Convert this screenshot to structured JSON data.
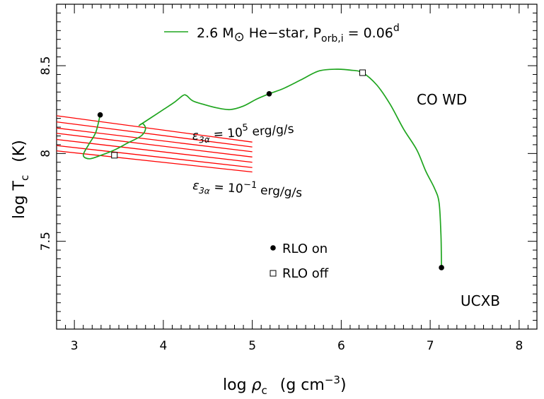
{
  "chart_data": {
    "type": "line",
    "xlabel_parts": {
      "main": "log ",
      "rho": "ρ",
      "sub": "c",
      "units": "(g cm",
      "sup": "−3",
      "close": ")"
    },
    "ylabel_parts": {
      "main": "log T",
      "sub": "c",
      "units": "(K)"
    },
    "xlim": [
      2.8,
      8.2
    ],
    "ylim": [
      7.0,
      8.85
    ],
    "x_ticks": [
      3,
      4,
      5,
      6,
      7,
      8
    ],
    "x_tick_labels": [
      "3",
      "4",
      "5",
      "6",
      "7",
      "8"
    ],
    "y_ticks": [
      7.5,
      8.0,
      8.5
    ],
    "y_tick_labels": [
      "7.5",
      "8",
      "8.5"
    ],
    "grid": false,
    "series": [
      {
        "color": "#1fa51f",
        "points": [
          [
            3.29,
            8.22
          ],
          [
            3.24,
            8.12
          ],
          [
            3.16,
            8.05
          ],
          [
            3.1,
            7.99
          ],
          [
            3.17,
            7.97
          ],
          [
            3.3,
            7.99
          ],
          [
            3.45,
            8.02
          ],
          [
            3.6,
            8.06
          ],
          [
            3.75,
            8.1
          ],
          [
            3.8,
            8.14
          ],
          [
            3.77,
            8.17
          ],
          [
            3.73,
            8.16
          ],
          [
            3.85,
            8.2
          ],
          [
            4.0,
            8.25
          ],
          [
            4.12,
            8.29
          ],
          [
            4.22,
            8.33
          ],
          [
            4.26,
            8.33
          ],
          [
            4.33,
            8.3
          ],
          [
            4.45,
            8.28
          ],
          [
            4.6,
            8.26
          ],
          [
            4.75,
            8.25
          ],
          [
            4.9,
            8.27
          ],
          [
            5.05,
            8.31
          ],
          [
            5.19,
            8.34
          ],
          [
            5.35,
            8.37
          ],
          [
            5.55,
            8.42
          ],
          [
            5.75,
            8.47
          ],
          [
            5.95,
            8.48
          ],
          [
            6.1,
            8.475
          ],
          [
            6.24,
            8.46
          ],
          [
            6.4,
            8.39
          ],
          [
            6.55,
            8.28
          ],
          [
            6.7,
            8.14
          ],
          [
            6.85,
            8.02
          ],
          [
            6.95,
            7.9
          ],
          [
            7.05,
            7.8
          ],
          [
            7.1,
            7.72
          ],
          [
            7.12,
            7.55
          ],
          [
            7.125,
            7.44
          ],
          [
            7.127,
            7.35
          ]
        ]
      }
    ],
    "legend": {
      "text_main": "2.6 M",
      "text_sun": "⊙",
      "text_mid": " He−star, P",
      "text_sub": "orb,i",
      "text_eq": " = 0.06",
      "text_sup": "d",
      "position": "top-center"
    },
    "burning_lines": {
      "color": "#ff0000",
      "x_range": [
        2.8,
        5.0
      ],
      "y_left": [
        8.215,
        8.18,
        8.145,
        8.115,
        8.08,
        8.045,
        8.015
      ],
      "y_right": [
        8.065,
        8.037,
        8.01,
        7.98,
        7.95,
        7.92,
        7.895
      ]
    },
    "markers": {
      "rlo_on": [
        [
          3.29,
          8.22
        ],
        [
          5.19,
          8.34
        ],
        [
          7.127,
          7.35
        ]
      ],
      "rlo_off": [
        [
          3.45,
          7.99
        ],
        [
          6.24,
          8.46
        ]
      ]
    },
    "labels": {
      "eps_top": {
        "eps": "ε",
        "sub": "3α",
        "eq": " = 10",
        "sup": "5",
        "units": " erg/g/s"
      },
      "eps_bottom": {
        "eps": "ε",
        "sub": "3α",
        "eq": " = 10",
        "sup": "−1",
        "units": " erg/g/s"
      },
      "co_wd": "CO WD",
      "ucxb": "UCXB",
      "rlo_on": "RLO on",
      "rlo_off": "RLO off"
    }
  }
}
